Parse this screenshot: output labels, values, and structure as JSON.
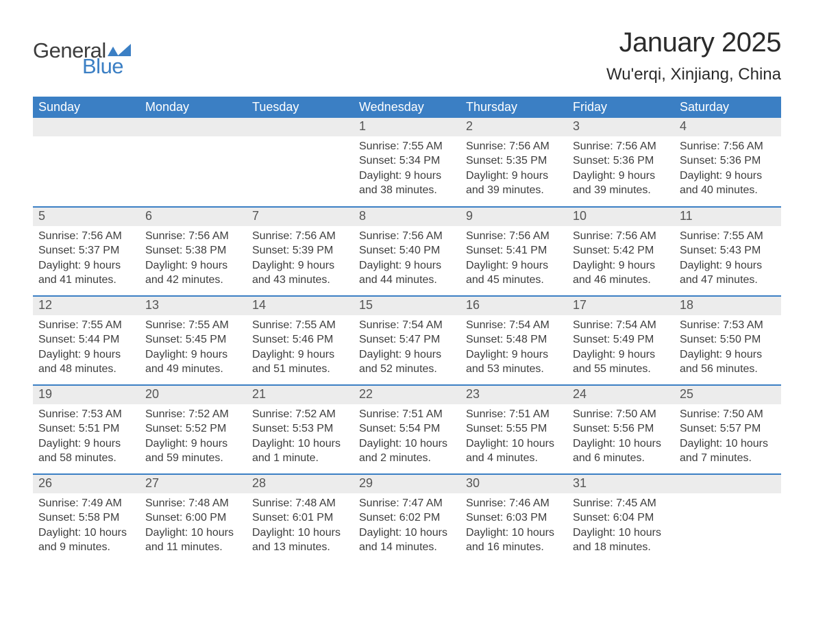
{
  "logo": {
    "word1": "General",
    "word2": "Blue"
  },
  "title": "January 2025",
  "subtitle": "Wu'erqi, Xinjiang, China",
  "colors": {
    "header_bg": "#3b7fc4",
    "header_text": "#ffffff",
    "daynum_bg": "#ececec",
    "daynum_text": "#555555",
    "body_text": "#3d3d3d",
    "row_border": "#3b7fc4",
    "page_bg": "#ffffff",
    "logo_dark": "#3d3d3d",
    "logo_blue": "#3b7fc4"
  },
  "typography": {
    "title_fontsize": 40,
    "subtitle_fontsize": 24,
    "header_fontsize": 18,
    "daynum_fontsize": 18,
    "body_fontsize": 16,
    "font_family": "Arial"
  },
  "calendar": {
    "type": "table",
    "columns": [
      "Sunday",
      "Monday",
      "Tuesday",
      "Wednesday",
      "Thursday",
      "Friday",
      "Saturday"
    ],
    "weeks": [
      [
        {
          "day": "",
          "sunrise": "",
          "sunset": "",
          "daylight": ""
        },
        {
          "day": "",
          "sunrise": "",
          "sunset": "",
          "daylight": ""
        },
        {
          "day": "",
          "sunrise": "",
          "sunset": "",
          "daylight": ""
        },
        {
          "day": "1",
          "sunrise": "Sunrise: 7:55 AM",
          "sunset": "Sunset: 5:34 PM",
          "daylight": "Daylight: 9 hours and 38 minutes."
        },
        {
          "day": "2",
          "sunrise": "Sunrise: 7:56 AM",
          "sunset": "Sunset: 5:35 PM",
          "daylight": "Daylight: 9 hours and 39 minutes."
        },
        {
          "day": "3",
          "sunrise": "Sunrise: 7:56 AM",
          "sunset": "Sunset: 5:36 PM",
          "daylight": "Daylight: 9 hours and 39 minutes."
        },
        {
          "day": "4",
          "sunrise": "Sunrise: 7:56 AM",
          "sunset": "Sunset: 5:36 PM",
          "daylight": "Daylight: 9 hours and 40 minutes."
        }
      ],
      [
        {
          "day": "5",
          "sunrise": "Sunrise: 7:56 AM",
          "sunset": "Sunset: 5:37 PM",
          "daylight": "Daylight: 9 hours and 41 minutes."
        },
        {
          "day": "6",
          "sunrise": "Sunrise: 7:56 AM",
          "sunset": "Sunset: 5:38 PM",
          "daylight": "Daylight: 9 hours and 42 minutes."
        },
        {
          "day": "7",
          "sunrise": "Sunrise: 7:56 AM",
          "sunset": "Sunset: 5:39 PM",
          "daylight": "Daylight: 9 hours and 43 minutes."
        },
        {
          "day": "8",
          "sunrise": "Sunrise: 7:56 AM",
          "sunset": "Sunset: 5:40 PM",
          "daylight": "Daylight: 9 hours and 44 minutes."
        },
        {
          "day": "9",
          "sunrise": "Sunrise: 7:56 AM",
          "sunset": "Sunset: 5:41 PM",
          "daylight": "Daylight: 9 hours and 45 minutes."
        },
        {
          "day": "10",
          "sunrise": "Sunrise: 7:56 AM",
          "sunset": "Sunset: 5:42 PM",
          "daylight": "Daylight: 9 hours and 46 minutes."
        },
        {
          "day": "11",
          "sunrise": "Sunrise: 7:55 AM",
          "sunset": "Sunset: 5:43 PM",
          "daylight": "Daylight: 9 hours and 47 minutes."
        }
      ],
      [
        {
          "day": "12",
          "sunrise": "Sunrise: 7:55 AM",
          "sunset": "Sunset: 5:44 PM",
          "daylight": "Daylight: 9 hours and 48 minutes."
        },
        {
          "day": "13",
          "sunrise": "Sunrise: 7:55 AM",
          "sunset": "Sunset: 5:45 PM",
          "daylight": "Daylight: 9 hours and 49 minutes."
        },
        {
          "day": "14",
          "sunrise": "Sunrise: 7:55 AM",
          "sunset": "Sunset: 5:46 PM",
          "daylight": "Daylight: 9 hours and 51 minutes."
        },
        {
          "day": "15",
          "sunrise": "Sunrise: 7:54 AM",
          "sunset": "Sunset: 5:47 PM",
          "daylight": "Daylight: 9 hours and 52 minutes."
        },
        {
          "day": "16",
          "sunrise": "Sunrise: 7:54 AM",
          "sunset": "Sunset: 5:48 PM",
          "daylight": "Daylight: 9 hours and 53 minutes."
        },
        {
          "day": "17",
          "sunrise": "Sunrise: 7:54 AM",
          "sunset": "Sunset: 5:49 PM",
          "daylight": "Daylight: 9 hours and 55 minutes."
        },
        {
          "day": "18",
          "sunrise": "Sunrise: 7:53 AM",
          "sunset": "Sunset: 5:50 PM",
          "daylight": "Daylight: 9 hours and 56 minutes."
        }
      ],
      [
        {
          "day": "19",
          "sunrise": "Sunrise: 7:53 AM",
          "sunset": "Sunset: 5:51 PM",
          "daylight": "Daylight: 9 hours and 58 minutes."
        },
        {
          "day": "20",
          "sunrise": "Sunrise: 7:52 AM",
          "sunset": "Sunset: 5:52 PM",
          "daylight": "Daylight: 9 hours and 59 minutes."
        },
        {
          "day": "21",
          "sunrise": "Sunrise: 7:52 AM",
          "sunset": "Sunset: 5:53 PM",
          "daylight": "Daylight: 10 hours and 1 minute."
        },
        {
          "day": "22",
          "sunrise": "Sunrise: 7:51 AM",
          "sunset": "Sunset: 5:54 PM",
          "daylight": "Daylight: 10 hours and 2 minutes."
        },
        {
          "day": "23",
          "sunrise": "Sunrise: 7:51 AM",
          "sunset": "Sunset: 5:55 PM",
          "daylight": "Daylight: 10 hours and 4 minutes."
        },
        {
          "day": "24",
          "sunrise": "Sunrise: 7:50 AM",
          "sunset": "Sunset: 5:56 PM",
          "daylight": "Daylight: 10 hours and 6 minutes."
        },
        {
          "day": "25",
          "sunrise": "Sunrise: 7:50 AM",
          "sunset": "Sunset: 5:57 PM",
          "daylight": "Daylight: 10 hours and 7 minutes."
        }
      ],
      [
        {
          "day": "26",
          "sunrise": "Sunrise: 7:49 AM",
          "sunset": "Sunset: 5:58 PM",
          "daylight": "Daylight: 10 hours and 9 minutes."
        },
        {
          "day": "27",
          "sunrise": "Sunrise: 7:48 AM",
          "sunset": "Sunset: 6:00 PM",
          "daylight": "Daylight: 10 hours and 11 minutes."
        },
        {
          "day": "28",
          "sunrise": "Sunrise: 7:48 AM",
          "sunset": "Sunset: 6:01 PM",
          "daylight": "Daylight: 10 hours and 13 minutes."
        },
        {
          "day": "29",
          "sunrise": "Sunrise: 7:47 AM",
          "sunset": "Sunset: 6:02 PM",
          "daylight": "Daylight: 10 hours and 14 minutes."
        },
        {
          "day": "30",
          "sunrise": "Sunrise: 7:46 AM",
          "sunset": "Sunset: 6:03 PM",
          "daylight": "Daylight: 10 hours and 16 minutes."
        },
        {
          "day": "31",
          "sunrise": "Sunrise: 7:45 AM",
          "sunset": "Sunset: 6:04 PM",
          "daylight": "Daylight: 10 hours and 18 minutes."
        },
        {
          "day": "",
          "sunrise": "",
          "sunset": "",
          "daylight": ""
        }
      ]
    ]
  }
}
